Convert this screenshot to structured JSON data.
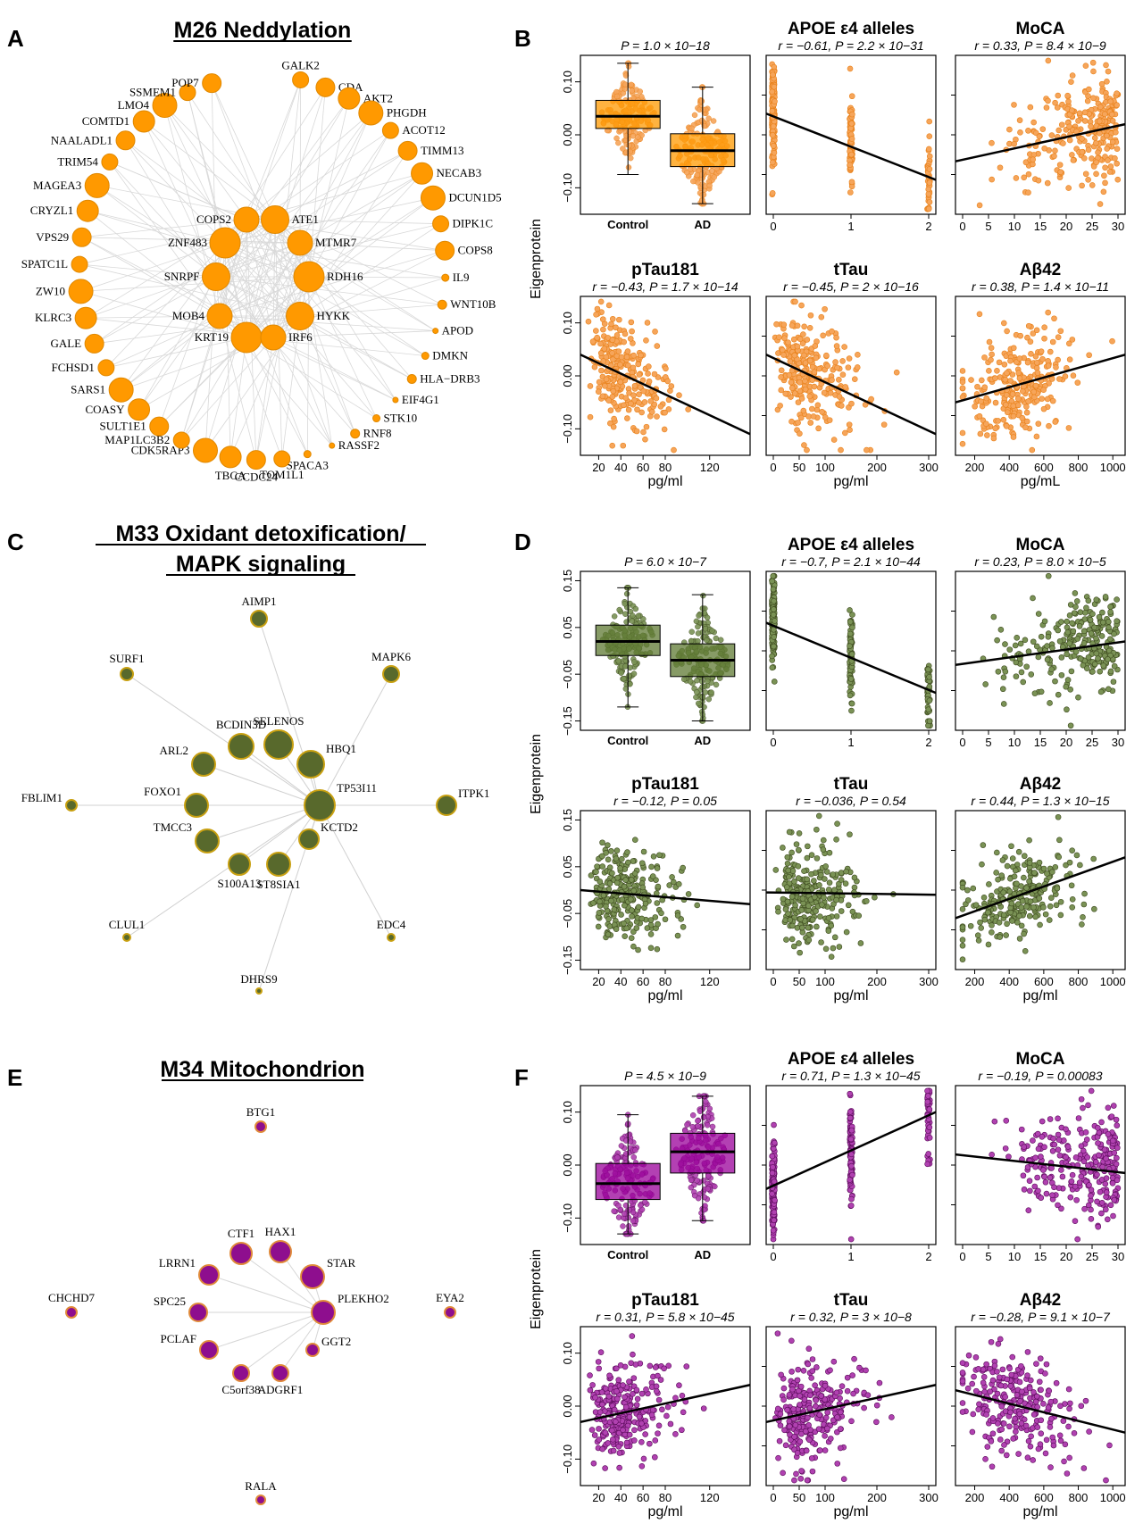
{
  "panel_letters": [
    "A",
    "B",
    "C",
    "D",
    "E",
    "F"
  ],
  "colors": {
    "M26": {
      "node": "#ff9900",
      "edge_pt": "#e8811a",
      "box": "#ff9900",
      "pt": "#f6a55a"
    },
    "M33": {
      "node": "#58692c",
      "edge_pt": "#3d4a1e",
      "box": "#5f7a33",
      "pt": "#7a9255",
      "stroke": "#c8a011"
    },
    "M34": {
      "node": "#8e0e8e",
      "edge_pt": "#5a0a5a",
      "box": "#990099",
      "pt": "#b041b0",
      "stroke": "#e08a3a"
    }
  },
  "networks": [
    {
      "title": "M26 Neddylation",
      "hubs": [
        "COPS2",
        "ATE1",
        "ZNF483",
        "MTMR7",
        "SNRPF",
        "RDH16",
        "MOB4",
        "HYKK",
        "KRT19",
        "IRF6"
      ],
      "ring": [
        "GALK2",
        "CDA",
        "AKT2",
        "PHGDH",
        "ACOT12",
        "TIMM13",
        "NECAB3",
        "DCUN1D5",
        "DIPK1C",
        "COPS8",
        "IL9",
        "WNT10B",
        "APOD",
        "DMKN",
        "HLA−DRB3",
        "EIF4G1",
        "STK10",
        "RNF8",
        "RASSF2",
        "SPACA3",
        "TOM1L1",
        "CCDC24",
        "TBCA",
        "CDK5RAP3",
        "MAP1LC3B2",
        "SULT1E1",
        "COASY",
        "SARS1",
        "FCHSD1",
        "GALE",
        "KLRC3",
        "ZW10",
        "SPATC1L",
        "VPS29",
        "CRYZL1",
        "MAGEA3",
        "TRIM54",
        "NAALADL1",
        "COMTD1",
        "LMO4",
        "SSMEM1",
        "POP7"
      ]
    },
    {
      "title_line1": "M33 Oxidant detoxification/",
      "title_line2": "MAPK signaling",
      "nodes": [
        "AIMP1",
        "SURF1",
        "MAPK6",
        "BCDIN3D",
        "SELENOS",
        "ARL2",
        "HBQ1",
        "FBLIM1",
        "FOXO1",
        "TP53I11",
        "ITPK1",
        "TMCC3",
        "KCTD2",
        "S100A13",
        "ST8SIA1",
        "CLUL1",
        "EDC4",
        "DHRS9"
      ]
    },
    {
      "title": "M34 Mitochondrion",
      "nodes": [
        "BTG1",
        "CTF1",
        "HAX1",
        "LRRN1",
        "STAR",
        "CHCHD7",
        "SPC25",
        "PLEKHO2",
        "EYA2",
        "PCLAF",
        "GGT2",
        "C5orf38",
        "ADGRF1",
        "RALA"
      ]
    }
  ],
  "y_axis_label": "Eigenprotein",
  "chart_data": [
    {
      "module": "M26",
      "panel": "B",
      "type": "scatter",
      "titles": [
        "",
        "APOE ε4 alleles",
        "MoCA",
        "pTau181",
        "tTau",
        "Aβ42"
      ],
      "stats": [
        "P = 1.0 × 10−18",
        "r = −0.61, P = 2.2 × 10−31",
        "r = 0.33, P = 8.4 × 10−9",
        "r = −0.43, P = 1.7 × 10−14",
        "r = −0.45, P = 2 × 10−16",
        "r = 0.38, P = 1.4 × 10−11"
      ],
      "box": {
        "categories": [
          "Control",
          "AD"
        ],
        "median": [
          0.035,
          -0.03
        ],
        "q1": [
          0.012,
          -0.06
        ],
        "q3": [
          0.065,
          0.002
        ],
        "whisker_lo": [
          -0.075,
          -0.13
        ],
        "whisker_hi": [
          0.135,
          0.09
        ]
      },
      "ylim": [
        -0.15,
        0.15
      ],
      "yticks": [
        "0.10",
        "0.00",
        "−0.10"
      ],
      "slopes": [
        [
          0.04,
          -0.085
        ],
        [
          -0.05,
          0.02
        ],
        [
          0.04,
          -0.11
        ],
        [
          0.04,
          -0.11
        ],
        [
          -0.05,
          0.04
        ]
      ]
    },
    {
      "module": "M33",
      "panel": "D",
      "type": "scatter",
      "titles": [
        "",
        "APOE ε4 alleles",
        "MoCA",
        "pTau181",
        "tTau",
        "Aβ42"
      ],
      "stats": [
        "P = 6.0 × 10−7",
        "r = −0.7, P = 2.1 × 10−44",
        "r = 0.23, P = 8.0 × 10−5",
        "r = −0.12, P = 0.05",
        "r = −0.036, P = 0.54",
        "r = 0.44, P = 1.3 × 10−15"
      ],
      "box": {
        "categories": [
          "Control",
          "AD"
        ],
        "median": [
          0.02,
          -0.02
        ],
        "q1": [
          -0.01,
          -0.055
        ],
        "q3": [
          0.055,
          0.015
        ],
        "whisker_lo": [
          -0.12,
          -0.15
        ],
        "whisker_hi": [
          0.135,
          0.12
        ]
      },
      "ylim": [
        -0.17,
        0.17
      ],
      "yticks": [
        "0.15",
        "0.05",
        "−0.05",
        "−0.15"
      ],
      "slopes": [
        [
          0.06,
          -0.09
        ],
        [
          -0.03,
          0.02
        ],
        [
          0.0,
          -0.03
        ],
        [
          -0.005,
          -0.01
        ],
        [
          -0.06,
          0.07
        ]
      ]
    },
    {
      "module": "M34",
      "panel": "F",
      "type": "scatter",
      "titles": [
        "",
        "APOE ε4 alleles",
        "MoCA",
        "pTau181",
        "tTau",
        "Aβ42"
      ],
      "stats": [
        "P = 4.5 × 10−9",
        "r = 0.71, P = 1.3 × 10−45",
        "r = −0.19, P = 0.00083",
        "r = 0.31, P = 5.8 × 10−45",
        "r = 0.32, P = 3 × 10−8",
        "r = −0.28, P = 9.1 × 10−7"
      ],
      "box": {
        "categories": [
          "Control",
          "AD"
        ],
        "median": [
          -0.035,
          0.025
        ],
        "q1": [
          -0.065,
          -0.015
        ],
        "q3": [
          0.003,
          0.06
        ],
        "whisker_lo": [
          -0.13,
          -0.105
        ],
        "whisker_hi": [
          0.095,
          0.13
        ]
      },
      "ylim": [
        -0.15,
        0.15
      ],
      "yticks": [
        "0.10",
        "0.00",
        "−0.10"
      ],
      "slopes": [
        [
          -0.045,
          0.1
        ],
        [
          0.02,
          -0.015
        ],
        [
          -0.03,
          0.04
        ],
        [
          -0.03,
          0.04
        ],
        [
          0.03,
          -0.05
        ]
      ]
    }
  ],
  "x_axes": {
    "apoe": {
      "ticks": [
        "0",
        "1",
        "2"
      ]
    },
    "moca": {
      "ticks": [
        "0",
        "5",
        "10",
        "15",
        "20",
        "25",
        "30"
      ]
    },
    "ptau": {
      "ticks": [
        "20",
        "40",
        "60",
        "80",
        "120"
      ],
      "label": "pg/ml"
    },
    "ttau": {
      "ticks": [
        "0",
        "50",
        "100",
        "200",
        "300"
      ],
      "label": "pg/ml"
    },
    "abeta": {
      "ticks": [
        "200",
        "400",
        "600",
        "800",
        "1000"
      ],
      "label_B": "pg/mL",
      "label_DF": "pg/ml"
    }
  }
}
